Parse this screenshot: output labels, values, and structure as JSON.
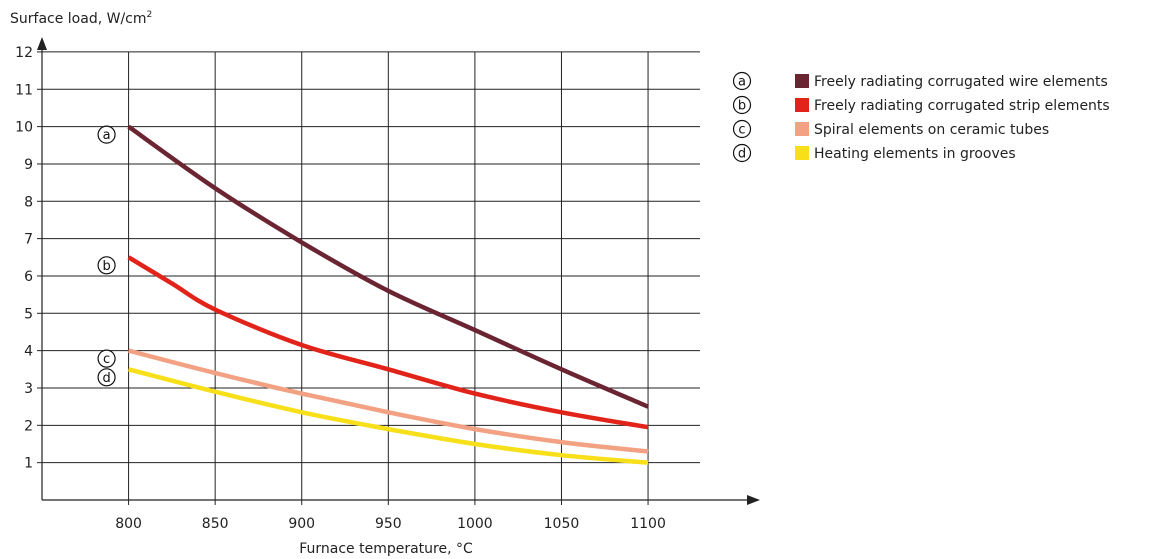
{
  "chart_data": {
    "type": "line",
    "xlabel": "Furnace temperature, °C",
    "ylabel": "Surface load, W/cm",
    "ylabel_sup": "2",
    "xlim": [
      750,
      1130
    ],
    "ylim": [
      0,
      12.4
    ],
    "x_ticks": [
      800,
      850,
      900,
      950,
      1000,
      1050,
      1100
    ],
    "x_tick_labels": [
      "800",
      "850",
      "900",
      "950",
      "1000",
      "1050",
      "1100"
    ],
    "y_ticks": [
      1,
      2,
      3,
      4,
      5,
      6,
      7,
      8,
      9,
      10,
      11,
      12
    ],
    "y_tick_labels": [
      "1",
      "2",
      "3",
      "4",
      "5",
      "6",
      "7",
      "8",
      "9",
      "10",
      "11",
      "12"
    ],
    "grid": true,
    "legend_position": "top-right",
    "series": [
      {
        "marker": "a",
        "name": "Freely radiating corrugated wire elements",
        "color": "#6b2432",
        "x": [
          800,
          850,
          900,
          950,
          1000,
          1050,
          1100
        ],
        "y": [
          10.0,
          8.35,
          6.9,
          5.6,
          4.55,
          3.5,
          2.5
        ]
      },
      {
        "marker": "b",
        "name": "Freely radiating corrugated strip elements",
        "color": "#e2231a",
        "x": [
          800,
          825,
          850,
          900,
          950,
          1000,
          1050,
          1100
        ],
        "y": [
          6.5,
          5.8,
          5.1,
          4.15,
          3.5,
          2.85,
          2.35,
          1.95
        ]
      },
      {
        "marker": "c",
        "name": "Spiral elements on ceramic tubes",
        "color": "#f2a183",
        "x": [
          800,
          850,
          900,
          950,
          1000,
          1050,
          1100
        ],
        "y": [
          4.0,
          3.4,
          2.85,
          2.35,
          1.9,
          1.55,
          1.3
        ]
      },
      {
        "marker": "d",
        "name": "Heating elements in grooves",
        "color": "#f7e01a",
        "x": [
          800,
          850,
          900,
          950,
          1000,
          1050,
          1100
        ],
        "y": [
          3.5,
          2.9,
          2.35,
          1.9,
          1.5,
          1.2,
          1.0
        ]
      }
    ]
  }
}
